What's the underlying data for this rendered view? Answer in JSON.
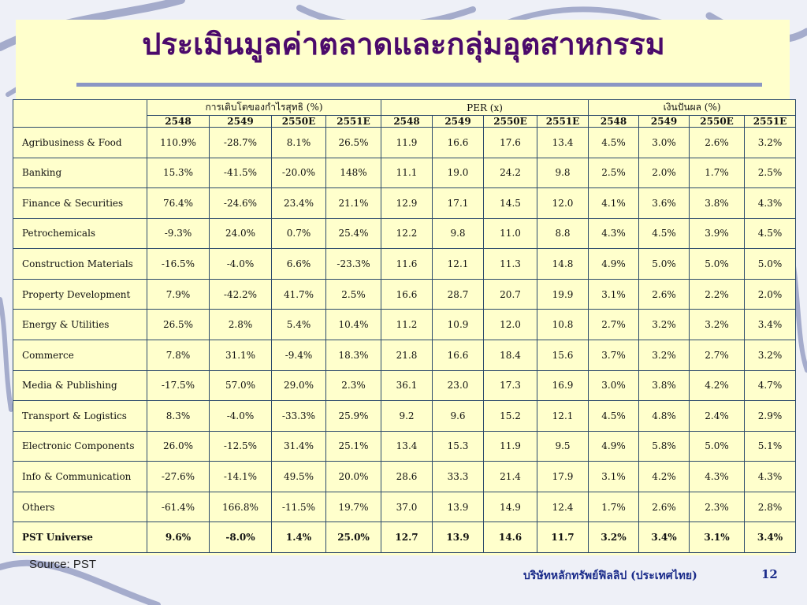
{
  "slide": {
    "title": "ประเมินมูลค่าตลาดและกลุ่มอุตสาหกรรม",
    "source": "Source: PST",
    "company": "บริษัทหลักทรัพย์ฟิลลิป (ประเทศไทย)",
    "page": "12"
  },
  "table": {
    "groups": [
      "การเติบโตของกำไรสุทธิ (%)",
      "PER (x)",
      "เงินปันผล (%)"
    ],
    "years": [
      "2548",
      "2549",
      "2550E",
      "2551E",
      "2548",
      "2549",
      "2550E",
      "2551E",
      "2548",
      "2549",
      "2550E",
      "2551E"
    ],
    "rows": [
      {
        "label": "Agribusiness & Food",
        "values": [
          "110.9%",
          "-28.7%",
          "8.1%",
          "26.5%",
          "11.9",
          "16.6",
          "17.6",
          "13.4",
          "4.5%",
          "3.0%",
          "2.6%",
          "3.2%"
        ]
      },
      {
        "label": "Banking",
        "values": [
          "15.3%",
          "-41.5%",
          "-20.0%",
          "148%",
          "11.1",
          "19.0",
          "24.2",
          "9.8",
          "2.5%",
          "2.0%",
          "1.7%",
          "2.5%"
        ]
      },
      {
        "label": "Finance & Securities",
        "values": [
          "76.4%",
          "-24.6%",
          "23.4%",
          "21.1%",
          "12.9",
          "17.1",
          "14.5",
          "12.0",
          "4.1%",
          "3.6%",
          "3.8%",
          "4.3%"
        ]
      },
      {
        "label": "Petrochemicals",
        "values": [
          "-9.3%",
          "24.0%",
          "0.7%",
          "25.4%",
          "12.2",
          "9.8",
          "11.0",
          "8.8",
          "4.3%",
          "4.5%",
          "3.9%",
          "4.5%"
        ]
      },
      {
        "label": "Construction Materials",
        "values": [
          "-16.5%",
          "-4.0%",
          "6.6%",
          "-23.3%",
          "11.6",
          "12.1",
          "11.3",
          "14.8",
          "4.9%",
          "5.0%",
          "5.0%",
          "5.0%"
        ]
      },
      {
        "label": "Property Development",
        "values": [
          "7.9%",
          "-42.2%",
          "41.7%",
          "2.5%",
          "16.6",
          "28.7",
          "20.7",
          "19.9",
          "3.1%",
          "2.6%",
          "2.2%",
          "2.0%"
        ]
      },
      {
        "label": "Energy & Utilities",
        "values": [
          "26.5%",
          "2.8%",
          "5.4%",
          "10.4%",
          "11.2",
          "10.9",
          "12.0",
          "10.8",
          "2.7%",
          "3.2%",
          "3.2%",
          "3.4%"
        ]
      },
      {
        "label": "Commerce",
        "values": [
          "7.8%",
          "31.1%",
          "-9.4%",
          "18.3%",
          "21.8",
          "16.6",
          "18.4",
          "15.6",
          "3.7%",
          "3.2%",
          "2.7%",
          "3.2%"
        ]
      },
      {
        "label": "Media & Publishing",
        "values": [
          "-17.5%",
          "57.0%",
          "29.0%",
          "2.3%",
          "36.1",
          "23.0",
          "17.3",
          "16.9",
          "3.0%",
          "3.8%",
          "4.2%",
          "4.7%"
        ]
      },
      {
        "label": "Transport & Logistics",
        "values": [
          "8.3%",
          "-4.0%",
          "-33.3%",
          "25.9%",
          "9.2",
          "9.6",
          "15.2",
          "12.1",
          "4.5%",
          "4.8%",
          "2.4%",
          "2.9%"
        ]
      },
      {
        "label": "Electronic Components",
        "values": [
          "26.0%",
          "-12.5%",
          "31.4%",
          "25.1%",
          "13.4",
          "15.3",
          "11.9",
          "9.5",
          "4.9%",
          "5.8%",
          "5.0%",
          "5.1%"
        ]
      },
      {
        "label": "Info & Communication",
        "values": [
          "-27.6%",
          "-14.1%",
          "49.5%",
          "20.0%",
          "28.6",
          "33.3",
          "21.4",
          "17.9",
          "3.1%",
          "4.2%",
          "4.3%",
          "4.3%"
        ]
      },
      {
        "label": "Others",
        "values": [
          "-61.4%",
          "166.8%",
          "-11.5%",
          "19.7%",
          "37.0",
          "13.9",
          "14.9",
          "12.4",
          "1.7%",
          "2.6%",
          "2.3%",
          "2.8%"
        ]
      }
    ],
    "total": {
      "label": "PST Universe",
      "values": [
        "9.6%",
        "-8.0%",
        "1.4%",
        "25.0%",
        "12.7",
        "13.9",
        "14.6",
        "11.7",
        "3.2%",
        "3.4%",
        "3.1%",
        "3.4%"
      ]
    }
  },
  "colors": {
    "title": "#4b0a6b",
    "panel": "#ffffcc",
    "border": "#2c4a6b",
    "footer": "#1a2b8a"
  }
}
